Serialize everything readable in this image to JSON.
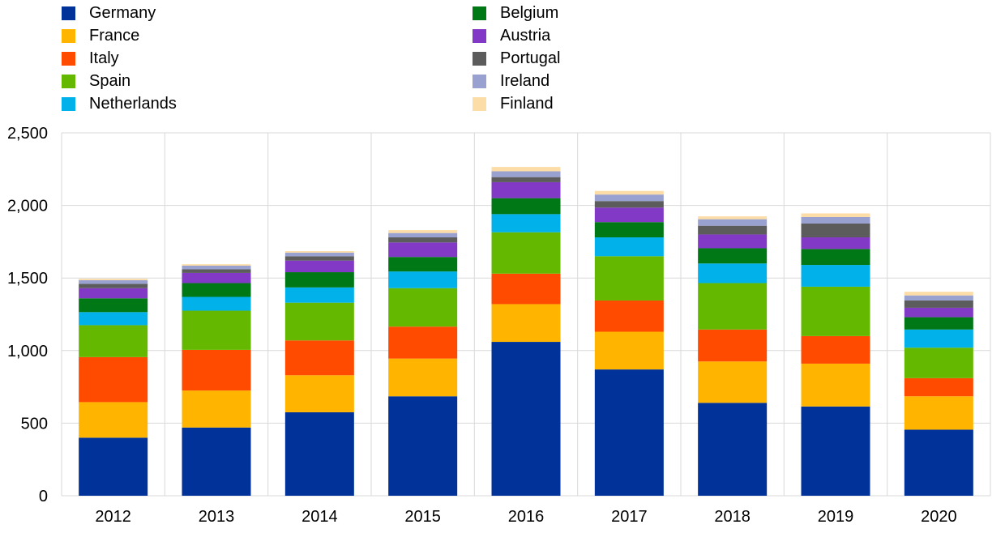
{
  "chart_data": {
    "type": "bar",
    "stacked": true,
    "title": "",
    "xlabel": "",
    "ylabel": "",
    "ylim": [
      0,
      2500
    ],
    "yticks": [
      0,
      500,
      1000,
      1500,
      2000,
      2500
    ],
    "ytick_labels": [
      "0",
      "500",
      "1,000",
      "1,500",
      "2,000",
      "2,500"
    ],
    "grid": true,
    "legend_position": "top",
    "categories": [
      "2012",
      "2013",
      "2014",
      "2015",
      "2016",
      "2017",
      "2018",
      "2019",
      "2020"
    ],
    "series": [
      {
        "name": "Germany",
        "color": "#003299",
        "values": [
          400,
          470,
          575,
          685,
          1060,
          870,
          640,
          615,
          455
        ]
      },
      {
        "name": "France",
        "color": "#FFB400",
        "values": [
          245,
          255,
          255,
          260,
          260,
          260,
          285,
          295,
          230
        ]
      },
      {
        "name": "Italy",
        "color": "#FF4B00",
        "values": [
          310,
          280,
          240,
          220,
          210,
          215,
          220,
          190,
          125
        ]
      },
      {
        "name": "Spain",
        "color": "#65B800",
        "values": [
          220,
          270,
          260,
          265,
          285,
          305,
          320,
          340,
          210
        ]
      },
      {
        "name": "Netherlands",
        "color": "#00B1EA",
        "values": [
          90,
          95,
          105,
          115,
          125,
          130,
          135,
          150,
          125
        ]
      },
      {
        "name": "Belgium",
        "color": "#007816",
        "values": [
          95,
          95,
          105,
          100,
          110,
          105,
          105,
          110,
          85
        ]
      },
      {
        "name": "Austria",
        "color": "#8139C6",
        "values": [
          70,
          70,
          80,
          100,
          110,
          100,
          95,
          80,
          65
        ]
      },
      {
        "name": "Portugal",
        "color": "#5C5C5C",
        "values": [
          30,
          25,
          30,
          35,
          35,
          45,
          60,
          95,
          50
        ]
      },
      {
        "name": "Ireland",
        "color": "#98A1D0",
        "values": [
          25,
          25,
          25,
          30,
          40,
          45,
          45,
          45,
          35
        ]
      },
      {
        "name": "Finland",
        "color": "#FDDDA7",
        "values": [
          10,
          10,
          10,
          20,
          30,
          25,
          20,
          25,
          25
        ]
      }
    ]
  }
}
